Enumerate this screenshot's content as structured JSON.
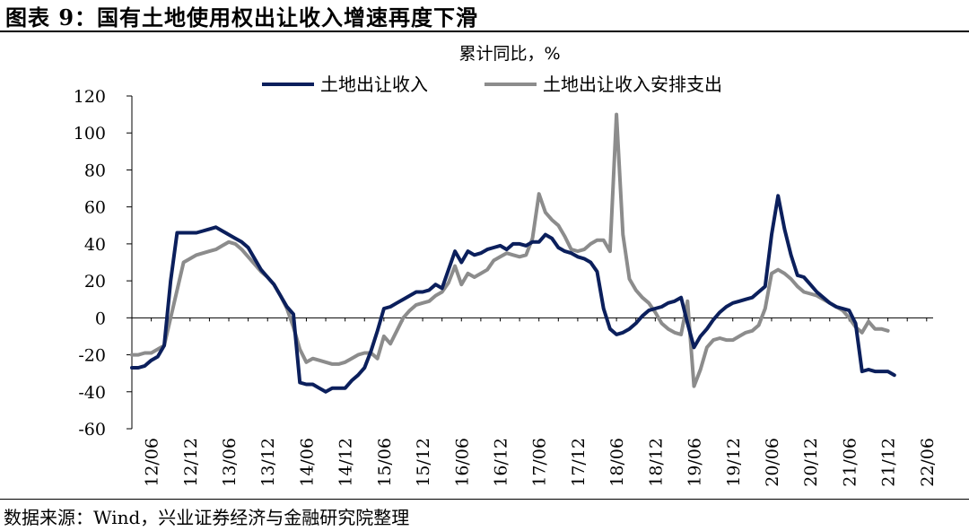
{
  "figure": {
    "title": "图表 9：国有土地使用权出让收入增速再度下滑",
    "source": "数据来源：Wind，兴业证券经济与金融研究院整理"
  },
  "chart_data": {
    "type": "line",
    "unit_label": "累计同比，%",
    "ylim": [
      -60,
      120
    ],
    "y_ticks": [
      120,
      100,
      80,
      60,
      40,
      20,
      0,
      -20,
      -40,
      -60
    ],
    "x_tick_labels": [
      "12/06",
      "12/12",
      "13/06",
      "13/12",
      "14/06",
      "14/12",
      "15/06",
      "15/12",
      "16/06",
      "16/12",
      "17/06",
      "17/12",
      "18/06",
      "18/12",
      "19/06",
      "19/12",
      "20/06",
      "20/12",
      "21/06",
      "21/12",
      "22/06"
    ],
    "x_start": "12/03",
    "x_end": "22/07",
    "legend_position": "top-center",
    "series": [
      {
        "name": "土地出让收入",
        "color": "#0b1f5c",
        "values": [
          -27,
          -27,
          -26,
          -23,
          -21,
          -15,
          20,
          46,
          46,
          46,
          46,
          47,
          48,
          49,
          47,
          45,
          43,
          41,
          38,
          32,
          26,
          22,
          18,
          12,
          6,
          2,
          -35,
          -36,
          -36,
          -38,
          -40,
          -38,
          -38,
          -38,
          -34,
          -31,
          -27,
          -18,
          -7,
          5,
          6,
          8,
          10,
          12,
          14,
          14,
          15,
          18,
          16,
          26,
          36,
          30,
          36,
          34,
          35,
          37,
          38,
          39,
          37,
          40,
          40,
          39,
          41,
          41,
          45,
          43,
          38,
          36,
          35,
          33,
          32,
          30,
          25,
          5,
          -6,
          -9,
          -8,
          -6,
          -3,
          1,
          4,
          5,
          6,
          8,
          9,
          11,
          -3,
          -16,
          -10,
          -6,
          -1,
          3,
          6,
          8,
          9,
          10,
          11,
          14,
          17,
          45,
          66,
          48,
          34,
          23,
          22,
          18,
          14,
          11,
          8,
          6,
          5,
          4,
          -3,
          -29,
          -28,
          -29,
          -29,
          -29,
          -31
        ]
      },
      {
        "name": "土地出让收入安排支出",
        "color": "#8c8c8c",
        "values": [
          -20,
          -20,
          -19,
          -19,
          -17,
          -15,
          0,
          15,
          30,
          32,
          34,
          35,
          36,
          37,
          39,
          41,
          40,
          37,
          33,
          29,
          25,
          22,
          18,
          12,
          5,
          -5,
          -17,
          -24,
          -22,
          -23,
          -24,
          -25,
          -25,
          -24,
          -22,
          -20,
          -19,
          -19,
          -22,
          -10,
          -14,
          -7,
          0,
          4,
          7,
          8,
          9,
          12,
          14,
          19,
          28,
          18,
          24,
          22,
          24,
          26,
          31,
          33,
          35,
          34,
          33,
          34,
          43,
          67,
          57,
          53,
          50,
          44,
          37,
          36,
          37,
          40,
          42,
          42,
          36,
          110,
          45,
          21,
          15,
          11,
          8,
          3,
          -3,
          -6,
          -8,
          -9,
          9,
          -37,
          -28,
          -16,
          -12,
          -11,
          -12,
          -12,
          -10,
          -8,
          -7,
          -4,
          5,
          24,
          26,
          24,
          21,
          17,
          14,
          13,
          12,
          10,
          8,
          6,
          4,
          0,
          -5,
          -8,
          -2,
          -6,
          -6,
          -7
        ]
      }
    ]
  }
}
